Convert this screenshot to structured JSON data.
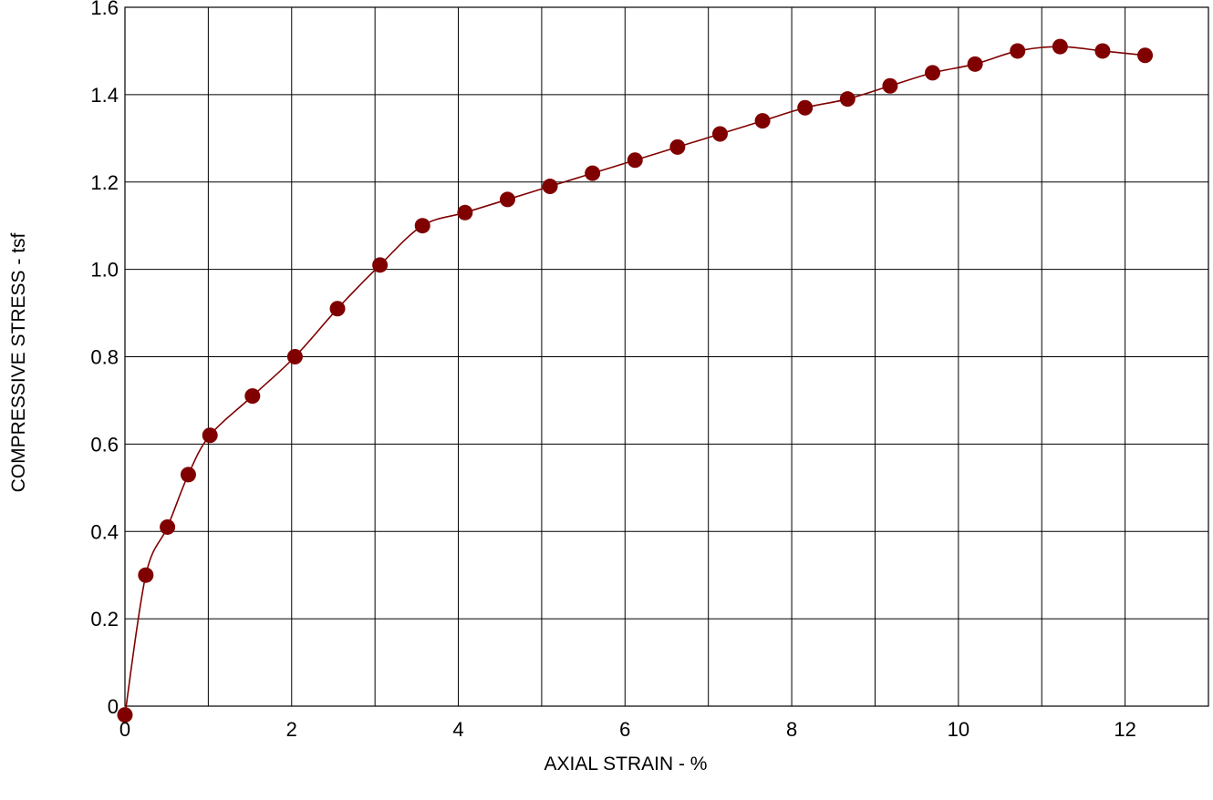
{
  "chart_data": {
    "type": "line",
    "title": "",
    "xlabel": "AXIAL STRAIN - %",
    "ylabel": "COMPRESSIVE STRESS - tsf",
    "xlim": [
      0,
      13
    ],
    "ylim": [
      0,
      1.6
    ],
    "x_ticks": [
      0,
      2,
      4,
      6,
      8,
      10,
      12
    ],
    "x_tick_labels": [
      "0",
      "2",
      "4",
      "6",
      "8",
      "10",
      "12"
    ],
    "x_gridlines": [
      0,
      1,
      2,
      3,
      4,
      5,
      6,
      7,
      8,
      9,
      10,
      11,
      12,
      13
    ],
    "y_ticks": [
      0,
      0.2,
      0.4,
      0.6,
      0.8,
      1.0,
      1.2,
      1.4,
      1.6
    ],
    "y_tick_labels": [
      "0",
      "0.2",
      "0.4",
      "0.6",
      "0.8",
      "1.0",
      "1.2",
      "1.4",
      "1.6"
    ],
    "grid": true,
    "legend": "none",
    "colors": {
      "series": "#800000",
      "grid": "#000000"
    },
    "series": [
      {
        "x": [
          0.0,
          0.25,
          0.51,
          0.76,
          1.02,
          1.53,
          2.04,
          2.55,
          3.06,
          3.57,
          4.08,
          4.59,
          5.1,
          5.61,
          6.12,
          6.63,
          7.14,
          7.65,
          8.16,
          8.67,
          9.18,
          9.69,
          10.2,
          10.71,
          11.22,
          11.73,
          12.24
        ],
        "y": [
          -0.02,
          0.3,
          0.41,
          0.53,
          0.62,
          0.71,
          0.8,
          0.91,
          1.01,
          1.1,
          1.13,
          1.16,
          1.19,
          1.22,
          1.25,
          1.28,
          1.31,
          1.34,
          1.37,
          1.39,
          1.42,
          1.45,
          1.47,
          1.5,
          1.51,
          1.5,
          1.49
        ]
      }
    ]
  }
}
